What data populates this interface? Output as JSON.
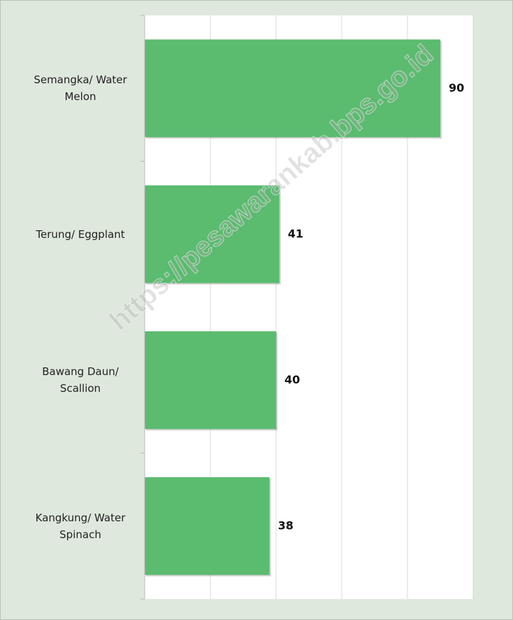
{
  "chart_data": {
    "type": "bar",
    "orientation": "horizontal",
    "categories": [
      "Semangka/ Water Melon",
      "Terung/ Eggplant",
      "Bawang Daun/ Scallion",
      "Kangkung/ Water Spinach"
    ],
    "values": [
      90,
      41,
      40,
      38
    ],
    "color": "#5bbb6f",
    "xlim": [
      0,
      100
    ],
    "xticks": [
      0,
      20,
      40,
      60,
      80,
      100
    ],
    "grid": true,
    "watermark": "https://pesawarankab.bps.go.id"
  }
}
